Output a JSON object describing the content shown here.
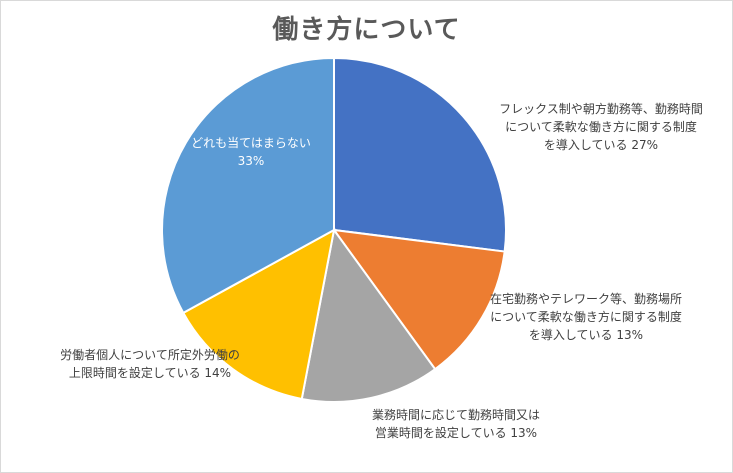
{
  "chart_data": {
    "type": "pie",
    "title": "働き方について",
    "unit": "%",
    "slices": [
      {
        "label": "フレックス制や朝方勤務等、勤務時間について柔軟な働き方に関する制度を導入している",
        "value": 27,
        "color": "#4472C4",
        "label_lines": [
          "フレックス制や朝方勤務等、勤務時間",
          "について柔軟な働き方に関する制度",
          "を導入している 27%"
        ]
      },
      {
        "label": "在宅勤務やテレワーク等、勤務場所について柔軟な働き方に関する制度を導入している",
        "value": 13,
        "color": "#ED7D31",
        "label_lines": [
          "在宅勤務やテレワーク等、勤務場所",
          "について柔軟な働き方に関する制度",
          "を導入している 13%"
        ]
      },
      {
        "label": "業務時間に応じて勤務時間又は営業時間を設定している",
        "value": 13,
        "color": "#A5A5A5",
        "label_lines": [
          "業務時間に応じて勤務時間又は",
          "営業時間を設定している 13%"
        ]
      },
      {
        "label": "労働者個人について所定外労働の上限時間を設定している",
        "value": 14,
        "color": "#FFC000",
        "label_lines": [
          "労働者個人について所定外労働の",
          "上限時間を設定している 14%"
        ]
      },
      {
        "label": "どれも当てはまらない",
        "value": 33,
        "color": "#5B9BD5",
        "label_lines": [
          "どれも当てはまらない",
          "33%"
        ]
      }
    ]
  }
}
